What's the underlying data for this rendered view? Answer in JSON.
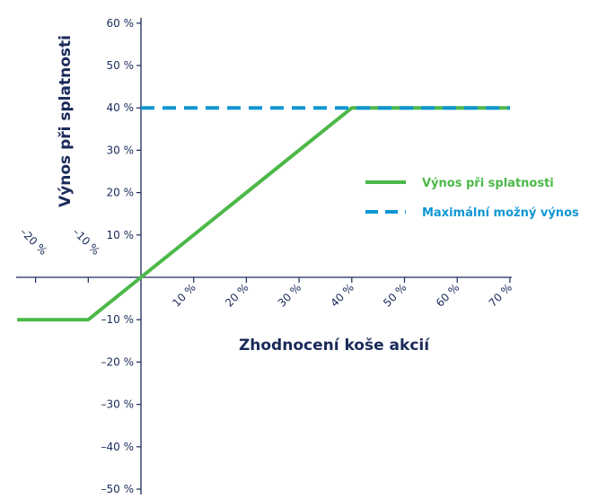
{
  "chart_data": {
    "type": "line",
    "xlabel": "Zhodnocení koše akcií",
    "ylabel": "Výnos při splatnosti",
    "x_ticks": [
      {
        "value": -20,
        "label": "–20 %"
      },
      {
        "value": -10,
        "label": "–10 %"
      },
      {
        "value": 10,
        "label": "10 %"
      },
      {
        "value": 20,
        "label": "20 %"
      },
      {
        "value": 30,
        "label": "30 %"
      },
      {
        "value": 40,
        "label": "40 %"
      },
      {
        "value": 50,
        "label": "50 %"
      },
      {
        "value": 60,
        "label": "60 %"
      },
      {
        "value": 70,
        "label": "70 %"
      }
    ],
    "y_ticks": [
      {
        "value": 60,
        "label": "60 %"
      },
      {
        "value": 50,
        "label": "50 %"
      },
      {
        "value": 40,
        "label": "40 %"
      },
      {
        "value": 30,
        "label": "30 %"
      },
      {
        "value": 20,
        "label": "20 %"
      },
      {
        "value": 10,
        "label": "10 %"
      },
      {
        "value": -10,
        "label": "–10 %"
      },
      {
        "value": -20,
        "label": "–20 %"
      },
      {
        "value": -30,
        "label": "–30 %"
      },
      {
        "value": -40,
        "label": "–40 %"
      },
      {
        "value": -50,
        "label": "–50 %"
      }
    ],
    "xlim": [
      -23.5,
      70
    ],
    "ylim": [
      -50,
      60
    ],
    "grid": false,
    "legend_position": "right",
    "series": [
      {
        "name": "Výnos při splatnosti",
        "style": "solid",
        "color": "#4cb848",
        "x": [
          -23.5,
          -10,
          0,
          40,
          70
        ],
        "y": [
          -10,
          -10,
          0,
          40,
          40
        ]
      },
      {
        "name": "Maximální možný výnos",
        "style": "dashed",
        "color": "#0f96d2",
        "x": [
          0,
          70
        ],
        "y": [
          40,
          40
        ]
      }
    ]
  },
  "colors": {
    "axis": "#1a2a5a",
    "text": "#1a2a5a",
    "green": "#4cb848",
    "blue": "#0f96d2"
  }
}
